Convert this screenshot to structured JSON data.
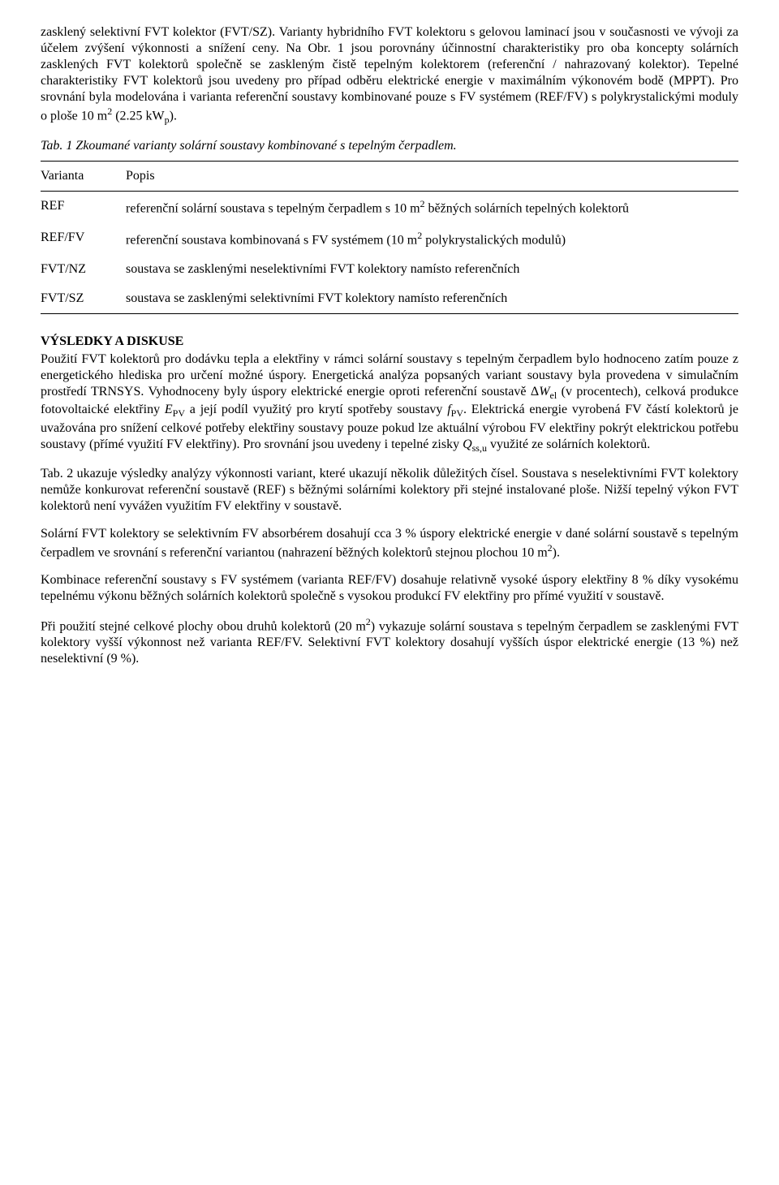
{
  "para1": "zasklený selektivní FVT kolektor (FVT/SZ). Varianty hybridního FVT kolektoru s gelovou laminací jsou v současnosti ve vývoji za účelem zvýšení výkonnosti a snížení ceny. Na Obr. 1 jsou porovnány účinnostní charakteristiky pro oba koncepty solárních zasklených FVT kolektorů společně se zaskleným čistě tepelným kolektorem (referenční / nahrazovaný kolektor). Tepelné charakteristiky FVT kolektorů jsou uvedeny pro případ odběru elektrické energie v maximálním výkonovém bodě (MPPT). Pro srovnání byla modelována i varianta referenční soustavy kombinované pouze s FV systémem (REF/FV) s polykrystalickými moduly o ploše 10 m",
  "para1_tail": " (2.25 kW",
  "para1_end": ").",
  "tabcaption": "Tab. 1 Zkoumané varianty solární soustavy kombinované s tepelným čerpadlem.",
  "th_var": "Varianta",
  "th_desc": "Popis",
  "row1_k": "REF",
  "row1_v_a": "referenční solární soustava s tepelným čerpadlem s 10 m",
  "row1_v_b": " běžných solárních tepelných kolektorů",
  "row2_k": "REF/FV",
  "row2_v_a": "referenční soustava kombinovaná s FV systémem (10 m",
  "row2_v_b": " polykrystalických modulů)",
  "row3_k": "FVT/NZ",
  "row3_v": "soustava se zasklenými neselektivními FVT kolektory namísto referenčních",
  "row4_k": "FVT/SZ",
  "row4_v": "soustava se zasklenými selektivními FVT kolektory namísto referenčních",
  "heading": "VÝSLEDKY A DISKUSE",
  "para2_a": "Použití FVT kolektorů pro dodávku tepla a elektřiny v rámci solární soustavy s tepelným čerpadlem bylo hodnoceno zatím pouze z energetického hlediska pro určení možné úspory. Energetická analýza popsaných variant soustavy byla provedena v simulačním prostředí TRNSYS. Vyhodnoceny byly úspory elektrické energie oproti referenční soustavě Δ",
  "para2_b": " (v procentech), celková produkce fotovoltaické elektřiny ",
  "para2_c": " a její podíl využitý pro krytí spotřeby soustavy ",
  "para2_d": ". Elektrická energie vyrobená FV částí kolektorů je uvažována pro snížení celkové potřeby elektřiny soustavy pouze pokud lze aktuální výrobou FV elektřiny pokrýt elektrickou potřebu soustavy (přímé využití FV elektřiny). Pro srovnání jsou uvedeny i tepelné zisky ",
  "para2_e": " využité ze solárních kolektorů.",
  "sym_Wel_W": "W",
  "sym_Wel_sub": "el",
  "sym_Epv_E": "E",
  "sym_Epv_sub": "PV",
  "sym_fpv_f": "f",
  "sym_fpv_sub": "PV",
  "sym_Qssu_Q": "Q",
  "sym_Qssu_sub": "ss,u",
  "para3": "Tab. 2 ukazuje výsledky analýzy výkonnosti variant, které ukazují několik důležitých čísel. Soustava s neselektivními FVT kolektory nemůže konkurovat referenční soustavě (REF) s běžnými solárními kolektory při stejné instalované ploše. Nižší tepelný výkon FVT kolektorů není vyvážen využitím FV elektřiny v soustavě.",
  "para4_a": "Solární FVT kolektory se selektivním FV absorbérem dosahují cca 3 % úspory elektrické energie v dané solární soustavě s tepelným čerpadlem ve srovnání s referenční variantou (nahrazení běžných kolektorů stejnou plochou 10 m",
  "para4_b": ").",
  "para5": "Kombinace referenční soustavy s FV systémem (varianta REF/FV) dosahuje relativně vysoké úspory elektřiny 8 % díky vysokému tepelnému výkonu běžných solárních kolektorů společně s vysokou produkcí FV elektřiny pro přímé využití v soustavě.",
  "para6_a": "Při použití stejné celkové plochy obou druhů kolektorů (20 m",
  "para6_b": ") vykazuje solární soustava s tepelným čerpadlem se zasklenými FVT kolektory vyšší výkonnost než varianta REF/FV. Selektivní FVT kolektory dosahují vyšších úspor elektrické energie (13 %) než neselektivní (9 %).",
  "sup2": "2",
  "sub_p": "p"
}
